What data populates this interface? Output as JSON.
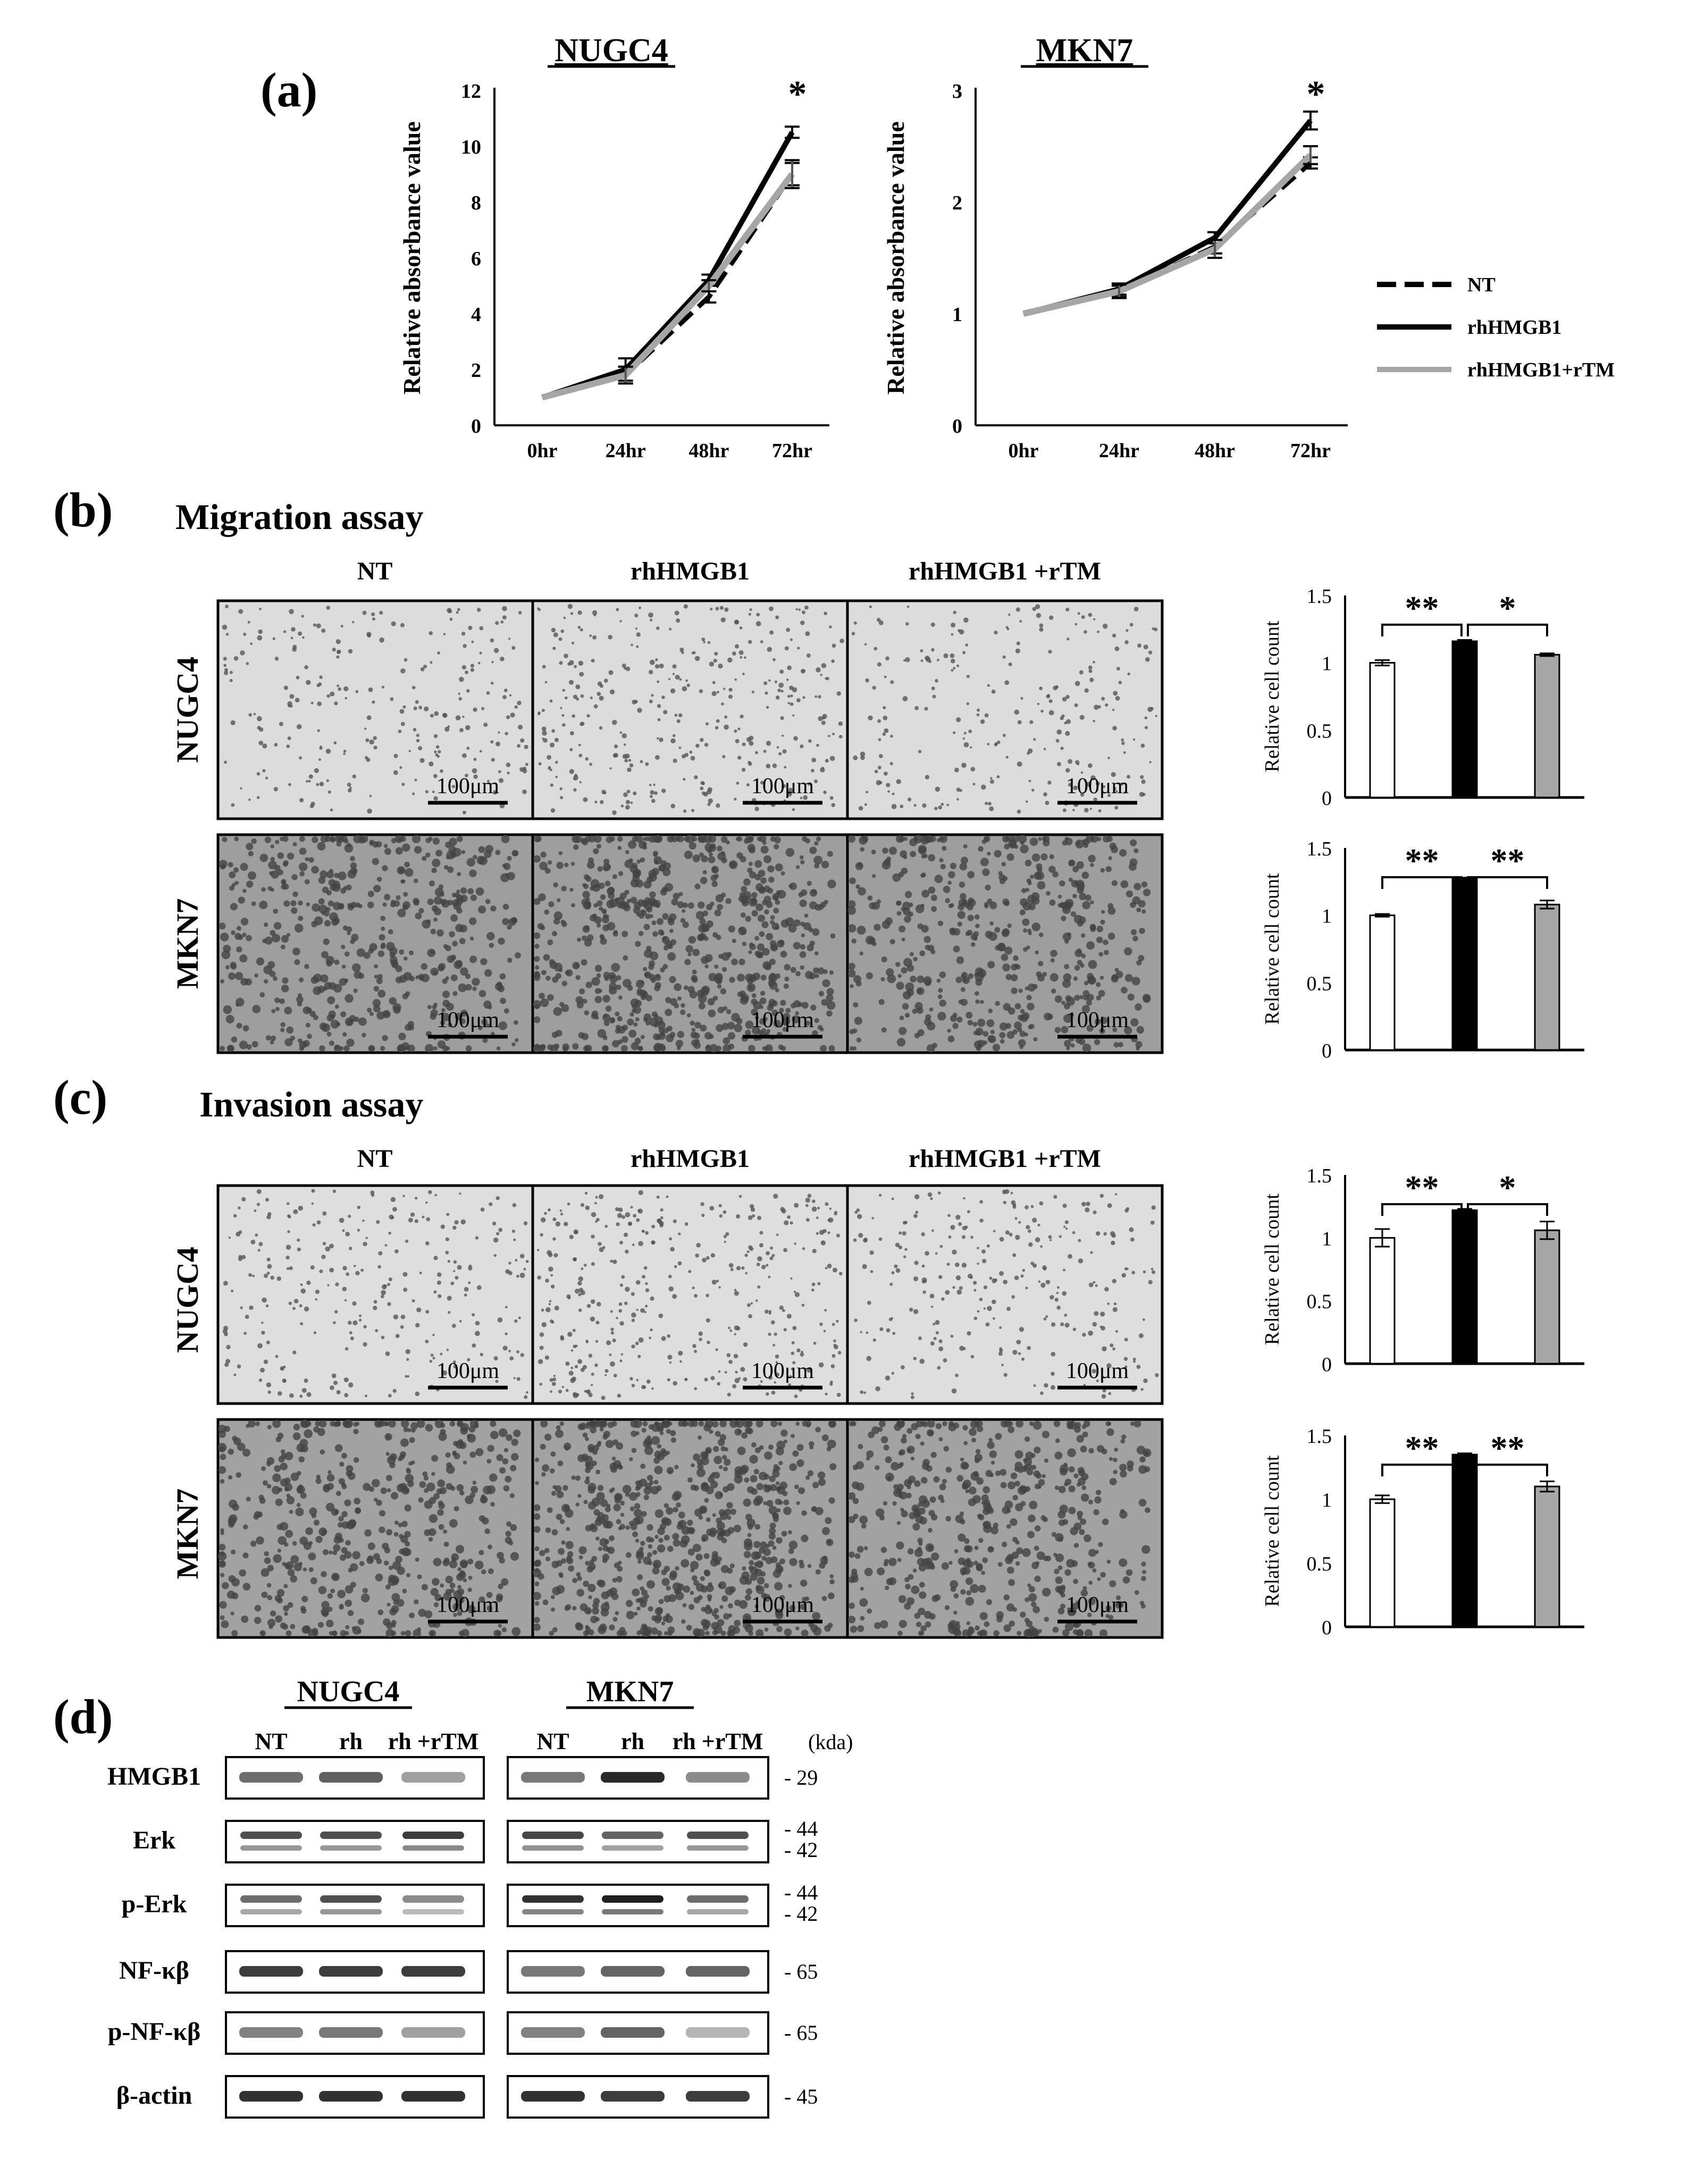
{
  "panel_labels": {
    "a": "(a)",
    "b": "(b)",
    "c": "(c)",
    "d": "(d)"
  },
  "legend": {
    "nt": "NT",
    "rh": "rhHMGB1",
    "rhtm": "rhHMGB1+rTM"
  },
  "colors": {
    "nt": "#000000",
    "rh": "#000000",
    "rhtm": "#a6a6a6",
    "bar_nt": "#ffffff",
    "bar_rh": "#000000",
    "bar_rhtm": "#a6a6a6"
  },
  "section_b": {
    "title": "Migration assay"
  },
  "section_c": {
    "title": "Invasion assay"
  },
  "image_headers": {
    "nt": "NT",
    "rh": "rhHMGB1",
    "rhtm": "rhHMGB1 +rTM"
  },
  "row_labels": {
    "nugc4": "NUGC4",
    "mkn7": "MKN7"
  },
  "scale_bar": "100μm",
  "chart_data": [
    {
      "id": "growth_nugc4",
      "type": "line",
      "title": "NUGC4",
      "ylabel": "Relative absorbance value",
      "xlabel": "",
      "categories": [
        "0hr",
        "24hr",
        "48hr",
        "72hr"
      ],
      "ylim": [
        0,
        12
      ],
      "yticks": [
        "0",
        "2",
        "4",
        "6",
        "8",
        "10",
        "12"
      ],
      "series": [
        {
          "name": "NT",
          "values": [
            1,
            1.8,
            4.6,
            9.0
          ],
          "err": [
            0,
            0.3,
            0.2,
            0.4
          ]
        },
        {
          "name": "rhHMGB1",
          "values": [
            1,
            2.0,
            5.2,
            10.5
          ],
          "err": [
            0,
            0.4,
            0.2,
            0.2
          ]
        },
        {
          "name": "rhHMGB1+rTM",
          "values": [
            1,
            1.8,
            5.0,
            9.0
          ],
          "err": [
            0,
            0.3,
            0.2,
            0.5
          ]
        }
      ],
      "annotation": "*"
    },
    {
      "id": "growth_mkn7",
      "type": "line",
      "title": "MKN7",
      "ylabel": "Relative absorbance value",
      "xlabel": "",
      "categories": [
        "0hr",
        "24hr",
        "48hr",
        "72hr"
      ],
      "ylim": [
        0,
        3
      ],
      "yticks": [
        "0",
        "1",
        "2",
        "3"
      ],
      "series": [
        {
          "name": "NT",
          "values": [
            1,
            1.2,
            1.6,
            2.35
          ],
          "err": [
            0,
            0.05,
            0.06,
            0.05
          ]
        },
        {
          "name": "rhHMGB1",
          "values": [
            1,
            1.22,
            1.68,
            2.73
          ],
          "err": [
            0,
            0.05,
            0.05,
            0.08
          ]
        },
        {
          "name": "rhHMGB1+rTM",
          "values": [
            1,
            1.2,
            1.58,
            2.42
          ],
          "err": [
            0,
            0.06,
            0.08,
            0.08
          ]
        }
      ],
      "annotation": "*"
    },
    {
      "id": "mig_nugc4",
      "type": "bar",
      "ylabel": "Relative cell count",
      "categories": [
        "NT",
        "rhHMGB1",
        "rhHMGB1+rTM"
      ],
      "values": [
        1.0,
        1.16,
        1.06
      ],
      "err": [
        0.02,
        0.01,
        0.01
      ],
      "ylim": [
        0,
        1.5
      ],
      "yticks": [
        "0",
        "0.5",
        "1",
        "1.5"
      ],
      "sig": [
        "**",
        "*"
      ]
    },
    {
      "id": "mig_mkn7",
      "type": "bar",
      "ylabel": "Relative cell count",
      "categories": [
        "NT",
        "rhHMGB1",
        "rhHMGB1+rTM"
      ],
      "values": [
        1.0,
        1.27,
        1.08
      ],
      "err": [
        0.01,
        0.01,
        0.03
      ],
      "ylim": [
        0,
        1.5
      ],
      "yticks": [
        "0",
        "0.5",
        "1",
        "1.5"
      ],
      "sig": [
        "**",
        "**"
      ]
    },
    {
      "id": "inv_nugc4",
      "type": "bar",
      "ylabel": "Relative cell count",
      "categories": [
        "NT",
        "rhHMGB1",
        "rhHMGB1+rTM"
      ],
      "values": [
        1.0,
        1.22,
        1.06
      ],
      "err": [
        0.07,
        0.01,
        0.07
      ],
      "ylim": [
        0,
        1.5
      ],
      "yticks": [
        "0",
        "0.5",
        "1",
        "1.5"
      ],
      "sig": [
        "**",
        "*"
      ]
    },
    {
      "id": "inv_mkn7",
      "type": "bar",
      "ylabel": "Relative cell count",
      "categories": [
        "NT",
        "rhHMGB1",
        "rhHMGB1+rTM"
      ],
      "values": [
        1.0,
        1.35,
        1.1
      ],
      "err": [
        0.03,
        0.01,
        0.04
      ],
      "ylim": [
        0,
        1.5
      ],
      "yticks": [
        "0",
        "0.5",
        "1",
        "1.5"
      ],
      "sig": [
        "**",
        "**"
      ]
    }
  ],
  "western": {
    "groups": [
      "NUGC4",
      "MKN7"
    ],
    "lanes": [
      "NT",
      "rh",
      "rh +rTM"
    ],
    "unit": "(kda)",
    "rows": [
      {
        "label": "HMGB1",
        "markers": [
          "- 29"
        ]
      },
      {
        "label": "Erk",
        "markers": [
          "- 44",
          "- 42"
        ]
      },
      {
        "label": "p-Erk",
        "markers": [
          "- 44",
          "- 42"
        ]
      },
      {
        "label": "NF-κβ",
        "markers": [
          "- 65"
        ]
      },
      {
        "label": "p-NF-κβ",
        "markers": [
          "- 65"
        ]
      },
      {
        "label": "β-actin",
        "markers": [
          "- 45"
        ]
      }
    ],
    "intensity": [
      [
        [
          0.55,
          0.62,
          0.3
        ],
        [
          0.5,
          0.9,
          0.4
        ]
      ],
      [
        [
          0.7,
          0.7,
          0.8
        ],
        [
          0.75,
          0.6,
          0.7
        ]
      ],
      [
        [
          0.55,
          0.7,
          0.4
        ],
        [
          0.85,
          0.95,
          0.55
        ]
      ],
      [
        [
          0.8,
          0.8,
          0.8
        ],
        [
          0.5,
          0.6,
          0.6
        ]
      ],
      [
        [
          0.45,
          0.5,
          0.3
        ],
        [
          0.45,
          0.6,
          0.2
        ]
      ],
      [
        [
          0.85,
          0.85,
          0.85
        ],
        [
          0.85,
          0.8,
          0.8
        ]
      ]
    ]
  }
}
